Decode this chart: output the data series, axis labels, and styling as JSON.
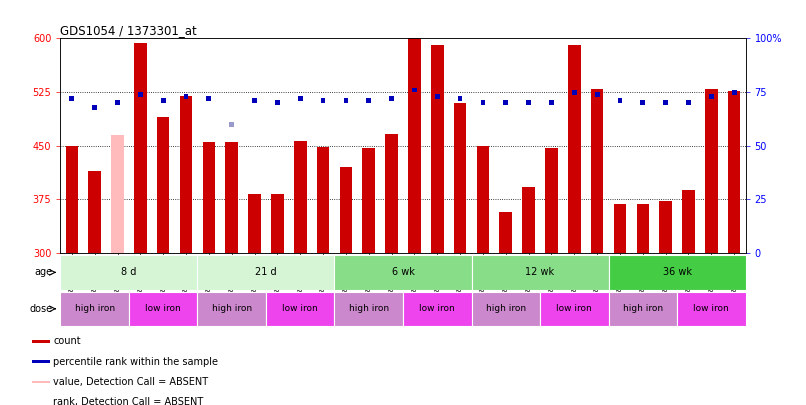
{
  "title": "GDS1054 / 1373301_at",
  "samples": [
    "GSM33513",
    "GSM33515",
    "GSM33517",
    "GSM33519",
    "GSM33521",
    "GSM33524",
    "GSM33525",
    "GSM33526",
    "GSM33527",
    "GSM33528",
    "GSM33529",
    "GSM33530",
    "GSM33531",
    "GSM33532",
    "GSM33533",
    "GSM33534",
    "GSM33535",
    "GSM33536",
    "GSM33537",
    "GSM33538",
    "GSM33539",
    "GSM33540",
    "GSM33541",
    "GSM33543",
    "GSM33544",
    "GSM33545",
    "GSM33546",
    "GSM33547",
    "GSM33548",
    "GSM33549"
  ],
  "counts": [
    450,
    415,
    465,
    593,
    490,
    520,
    455,
    455,
    383,
    383,
    457,
    449,
    421,
    447,
    467,
    600,
    591,
    510,
    450,
    357,
    393,
    447,
    591,
    530,
    369,
    369,
    373,
    388,
    530,
    527
  ],
  "rank_values": [
    72,
    68,
    70,
    74,
    71,
    73,
    72,
    60,
    71,
    70,
    72,
    71,
    71,
    71,
    72,
    76,
    73,
    72,
    70,
    70,
    70,
    70,
    75,
    74,
    71,
    70,
    70,
    70,
    73,
    75
  ],
  "absent_bar_indices": [
    2
  ],
  "absent_dot_indices": [
    7
  ],
  "bar_color_normal": "#cc0000",
  "bar_color_absent": "#ffbbbb",
  "dot_color_normal": "#0000bb",
  "dot_color_absent": "#9999cc",
  "ylim_left": [
    300,
    600
  ],
  "ylim_right": [
    0,
    100
  ],
  "yticks_left": [
    300,
    375,
    450,
    525,
    600
  ],
  "yticks_right": [
    0,
    25,
    50,
    75,
    100
  ],
  "hlines": [
    375,
    450,
    525
  ],
  "age_groups": [
    {
      "label": "8 d",
      "start": 0,
      "end": 5,
      "color": "#d5f5d5"
    },
    {
      "label": "21 d",
      "start": 6,
      "end": 11,
      "color": "#d5f5d5"
    },
    {
      "label": "6 wk",
      "start": 12,
      "end": 17,
      "color": "#88dd88"
    },
    {
      "label": "12 wk",
      "start": 18,
      "end": 23,
      "color": "#88dd88"
    },
    {
      "label": "36 wk",
      "start": 24,
      "end": 29,
      "color": "#44cc44"
    }
  ],
  "dose_groups": [
    {
      "label": "high iron",
      "start": 0,
      "end": 2,
      "color": "#cc88cc"
    },
    {
      "label": "low iron",
      "start": 3,
      "end": 5,
      "color": "#ee44ee"
    },
    {
      "label": "high iron",
      "start": 6,
      "end": 8,
      "color": "#cc88cc"
    },
    {
      "label": "low iron",
      "start": 9,
      "end": 11,
      "color": "#ee44ee"
    },
    {
      "label": "high iron",
      "start": 12,
      "end": 14,
      "color": "#cc88cc"
    },
    {
      "label": "low iron",
      "start": 15,
      "end": 17,
      "color": "#ee44ee"
    },
    {
      "label": "high iron",
      "start": 18,
      "end": 20,
      "color": "#cc88cc"
    },
    {
      "label": "low iron",
      "start": 21,
      "end": 23,
      "color": "#ee44ee"
    },
    {
      "label": "high iron",
      "start": 24,
      "end": 26,
      "color": "#cc88cc"
    },
    {
      "label": "low iron",
      "start": 27,
      "end": 29,
      "color": "#ee44ee"
    }
  ]
}
